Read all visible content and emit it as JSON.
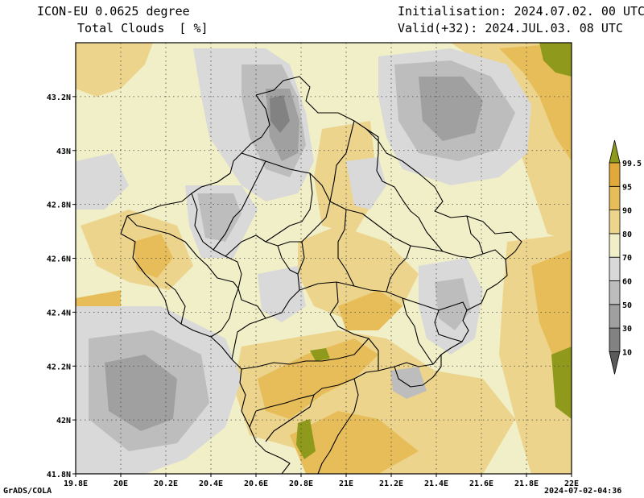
{
  "header": {
    "model": "ICON-EU 0.0625 degree",
    "field": "Total Clouds  [ %]",
    "init": "Initialisation: 2024.07.02. 00 UTC",
    "valid": "Valid(+32): 2024.JUL.03. 08 UTC"
  },
  "footer": {
    "credit": "GrADS/COLA",
    "timestamp": "2024-07-02-04:36"
  },
  "map": {
    "lon_range": [
      19.8,
      22.0
    ],
    "lat_range": [
      41.8,
      43.4
    ],
    "lon_ticks": [
      "19.8E",
      "20E",
      "20.2E",
      "20.4E",
      "20.6E",
      "20.8E",
      "21E",
      "21.2E",
      "21.4E",
      "21.6E",
      "21.8E",
      "22E"
    ],
    "lat_ticks": [
      "41.8N",
      "42N",
      "42.2N",
      "42.4N",
      "42.6N",
      "42.8N",
      "43N",
      "43.2N"
    ]
  },
  "legend": {
    "levels": [
      "10",
      "30",
      "50",
      "60",
      "70",
      "80",
      "90",
      "95",
      "99.5"
    ],
    "colors": [
      "#5a5a5a",
      "#828282",
      "#a0a0a0",
      "#bdbdbd",
      "#d9d9d9",
      "#f1efc8",
      "#ecd48c",
      "#e7bd5a",
      "#e1a83a",
      "#8f9a1c"
    ]
  }
}
